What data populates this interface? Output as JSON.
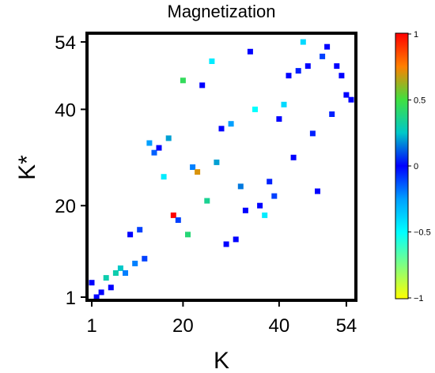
{
  "chart_data": {
    "type": "scatter",
    "title": "Magnetization",
    "xlabel": "K",
    "ylabel": "K*",
    "xlim": [
      1,
      55
    ],
    "ylim": [
      1,
      55
    ],
    "xticks": [
      1,
      20,
      40,
      54
    ],
    "yticks": [
      1,
      20,
      40,
      54
    ],
    "colorbar": {
      "range": [
        -1,
        1
      ],
      "ticks": [
        "1",
        "0.5",
        "0",
        "−0.5",
        "−1"
      ],
      "tick_values": [
        1,
        0.5,
        0,
        -0.5,
        -1
      ]
    },
    "points": [
      {
        "x": 1,
        "y": 4,
        "c": 0.0
      },
      {
        "x": 2,
        "y": 1,
        "c": 0.0
      },
      {
        "x": 3,
        "y": 2,
        "c": 0.0
      },
      {
        "x": 4,
        "y": 5,
        "c": 0.3
      },
      {
        "x": 5,
        "y": 3,
        "c": 0.0
      },
      {
        "x": 6,
        "y": 6,
        "c": 0.3
      },
      {
        "x": 7,
        "y": 7,
        "c": 0.25
      },
      {
        "x": 8,
        "y": 6,
        "c": -0.2
      },
      {
        "x": 9,
        "y": 14,
        "c": 0.0
      },
      {
        "x": 10,
        "y": 8,
        "c": -0.2
      },
      {
        "x": 11,
        "y": 15,
        "c": -0.1
      },
      {
        "x": 12,
        "y": 9,
        "c": -0.1
      },
      {
        "x": 13,
        "y": 33,
        "c": -0.25
      },
      {
        "x": 14,
        "y": 31,
        "c": -0.15
      },
      {
        "x": 15,
        "y": 32,
        "c": 0.0
      },
      {
        "x": 16,
        "y": 26,
        "c": -0.45
      },
      {
        "x": 17,
        "y": 34,
        "c": 0.2
      },
      {
        "x": 18,
        "y": 18,
        "c": 1.0
      },
      {
        "x": 19,
        "y": 17,
        "c": -0.1
      },
      {
        "x": 20,
        "y": 46,
        "c": 0.45
      },
      {
        "x": 21,
        "y": 14,
        "c": 0.4
      },
      {
        "x": 22,
        "y": 28,
        "c": -0.2
      },
      {
        "x": 23,
        "y": 27,
        "c": 0.7
      },
      {
        "x": 24,
        "y": 45,
        "c": 0.0
      },
      {
        "x": 25,
        "y": 21,
        "c": 0.35
      },
      {
        "x": 26,
        "y": 50,
        "c": -0.45
      },
      {
        "x": 27,
        "y": 29,
        "c": 0.2
      },
      {
        "x": 28,
        "y": 36,
        "c": 0.0
      },
      {
        "x": 29,
        "y": 12,
        "c": 0.0
      },
      {
        "x": 30,
        "y": 37,
        "c": -0.25
      },
      {
        "x": 31,
        "y": 13,
        "c": 0.0
      },
      {
        "x": 32,
        "y": 24,
        "c": 0.15
      },
      {
        "x": 33,
        "y": 19,
        "c": 0.0
      },
      {
        "x": 34,
        "y": 52,
        "c": 0.0
      },
      {
        "x": 35,
        "y": 40,
        "c": -0.5
      },
      {
        "x": 36,
        "y": 20,
        "c": 0.0
      },
      {
        "x": 37,
        "y": 18,
        "c": -0.45
      },
      {
        "x": 38,
        "y": 25,
        "c": -0.05
      },
      {
        "x": 39,
        "y": 22,
        "c": -0.1
      },
      {
        "x": 40,
        "y": 38,
        "c": 0.0
      },
      {
        "x": 41,
        "y": 41,
        "c": -0.4
      },
      {
        "x": 42,
        "y": 47,
        "c": 0.0
      },
      {
        "x": 43,
        "y": 30,
        "c": 0.0
      },
      {
        "x": 44,
        "y": 48,
        "c": -0.05
      },
      {
        "x": 45,
        "y": 54,
        "c": -0.4
      },
      {
        "x": 46,
        "y": 49,
        "c": 0.0
      },
      {
        "x": 47,
        "y": 35,
        "c": -0.05
      },
      {
        "x": 48,
        "y": 23,
        "c": 0.0
      },
      {
        "x": 49,
        "y": 51,
        "c": -0.1
      },
      {
        "x": 50,
        "y": 53,
        "c": 0.0
      },
      {
        "x": 51,
        "y": 39,
        "c": -0.05
      },
      {
        "x": 52,
        "y": 49,
        "c": 0.0
      },
      {
        "x": 53,
        "y": 47,
        "c": 0.0
      },
      {
        "x": 54,
        "y": 43,
        "c": 0.0
      },
      {
        "x": 55,
        "y": 42,
        "c": 0.0
      }
    ]
  }
}
